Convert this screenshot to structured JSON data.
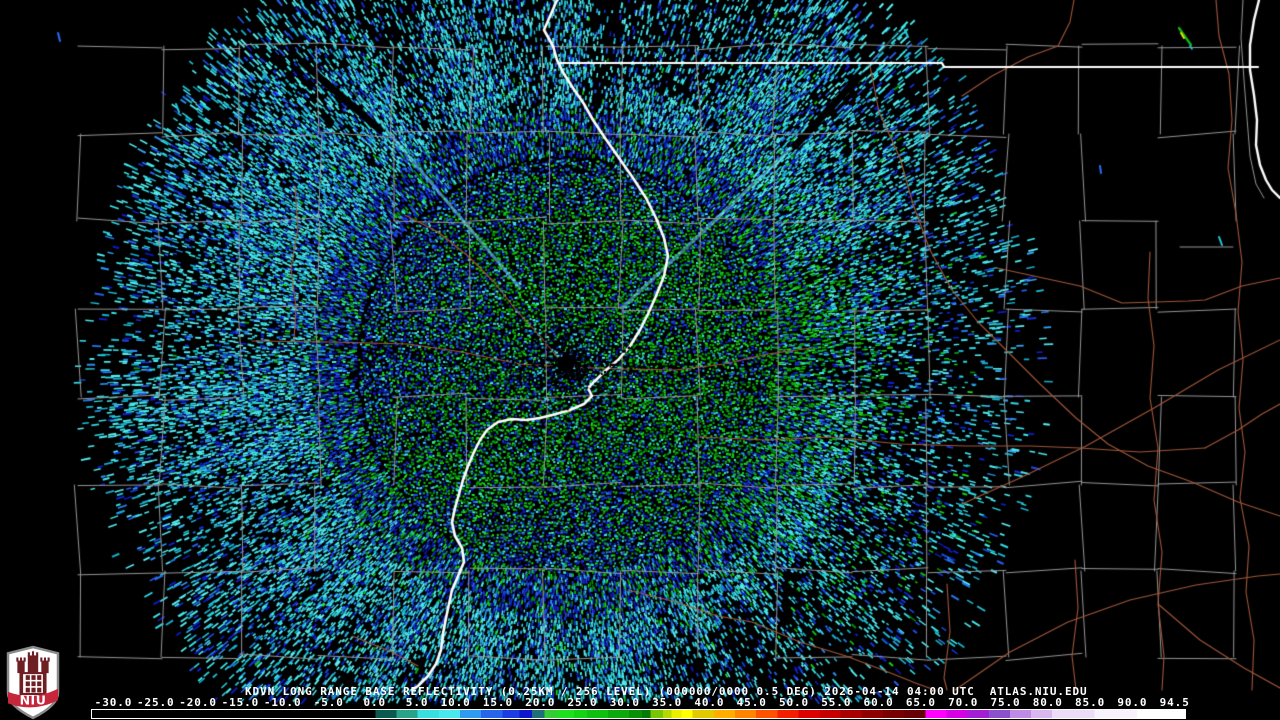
{
  "product_bar": {
    "title_line": "KDVN LONG RANGE BASE REFLECTIVITY (0.25KM / 256 LEVEL) (000000/0000 0.5 DEG) 2026-04-14 04:00 UTC  ATLAS.NIU.EDU",
    "station": "KDVN",
    "product": "LONG RANGE BASE REFLECTIVITY",
    "resolution": "0.25KM / 256 LEVEL",
    "scan_code": "000000/0000",
    "elevation": "0.5 DEG",
    "datetime_utc": "2026-04-14 04:00 UTC",
    "source": "ATLAS.NIU.EDU"
  },
  "colorbar": {
    "labels": [
      "-30.0",
      "-25.0",
      "-20.0",
      "-15.0",
      "-10.0",
      "-5.0",
      "0.0",
      "5.0",
      "10.0",
      "15.0",
      "20.0",
      "25.0",
      "30.0",
      "35.0",
      "40.0",
      "45.0",
      "50.0",
      "55.0",
      "60.0",
      "65.0",
      "70.0",
      "75.0",
      "80.0",
      "85.0",
      "90.0",
      "94.5"
    ],
    "segments": [
      {
        "from": -30.0,
        "to": 0,
        "color": "#000000"
      },
      {
        "from": 0,
        "to": 2.5,
        "color": "#0a5a50"
      },
      {
        "from": 2.5,
        "to": 5,
        "color": "#28a389"
      },
      {
        "from": 5,
        "to": 7.5,
        "color": "#37dfdf"
      },
      {
        "from": 7.5,
        "to": 10,
        "color": "#49e8ef"
      },
      {
        "from": 10,
        "to": 12.5,
        "color": "#2e9af0"
      },
      {
        "from": 12.5,
        "to": 15,
        "color": "#2566ea"
      },
      {
        "from": 15,
        "to": 17,
        "color": "#1d3ce2"
      },
      {
        "from": 17,
        "to": 18.5,
        "color": "#1016cc"
      },
      {
        "from": 18.5,
        "to": 20,
        "color": "#1f6f7a"
      },
      {
        "from": 20,
        "to": 21.5,
        "color": "#35cc35"
      },
      {
        "from": 21.5,
        "to": 23.5,
        "color": "#1ee01e"
      },
      {
        "from": 23.5,
        "to": 25,
        "color": "#12d412"
      },
      {
        "from": 25,
        "to": 27.5,
        "color": "#0fc00f"
      },
      {
        "from": 27.5,
        "to": 30,
        "color": "#0ba90b"
      },
      {
        "from": 30,
        "to": 31.5,
        "color": "#089008"
      },
      {
        "from": 31.5,
        "to": 32.5,
        "color": "#067a06"
      },
      {
        "from": 32.5,
        "to": 34,
        "color": "#78c602"
      },
      {
        "from": 34,
        "to": 35,
        "color": "#b4d800"
      },
      {
        "from": 35,
        "to": 36.2,
        "color": "#eaee00"
      },
      {
        "from": 36.2,
        "to": 37.5,
        "color": "#ffff00"
      },
      {
        "from": 37.5,
        "to": 40,
        "color": "#e2ca00"
      },
      {
        "from": 40,
        "to": 42.5,
        "color": "#ffae00"
      },
      {
        "from": 42.5,
        "to": 45,
        "color": "#ff8400"
      },
      {
        "from": 45,
        "to": 47.5,
        "color": "#ff5200"
      },
      {
        "from": 47.5,
        "to": 50,
        "color": "#f22000"
      },
      {
        "from": 50,
        "to": 52.5,
        "color": "#de0000"
      },
      {
        "from": 52.5,
        "to": 55,
        "color": "#c40000"
      },
      {
        "from": 55,
        "to": 57.5,
        "color": "#a80000"
      },
      {
        "from": 57.5,
        "to": 60,
        "color": "#8e0000"
      },
      {
        "from": 60,
        "to": 62.5,
        "color": "#780000"
      },
      {
        "from": 62.5,
        "to": 65,
        "color": "#660006"
      },
      {
        "from": 65,
        "to": 67.5,
        "color": "#ff00ff"
      },
      {
        "from": 67.5,
        "to": 70,
        "color": "#d600e4"
      },
      {
        "from": 70,
        "to": 72.5,
        "color": "#a31ed2"
      },
      {
        "from": 72.5,
        "to": 75,
        "color": "#8c50cc"
      },
      {
        "from": 75,
        "to": 77.5,
        "color": "#be8ce4"
      },
      {
        "from": 77.5,
        "to": 80,
        "color": "#d9b6f0"
      },
      {
        "from": 80,
        "to": 85,
        "color": "#ecdcf8"
      },
      {
        "from": 85,
        "to": 90,
        "color": "#f8f2fc"
      },
      {
        "from": 90,
        "to": 94.5,
        "color": "#ffffff"
      }
    ]
  },
  "logo": {
    "label": "NIU"
  },
  "map_colors": {
    "background": "#000000",
    "county_line": "#969696",
    "river_road_line": "#a2573a",
    "state_border": "#ffffff",
    "water_line": "#ffffff",
    "logo_red": "#c6263b",
    "logo_castle": "#6d1f24"
  }
}
